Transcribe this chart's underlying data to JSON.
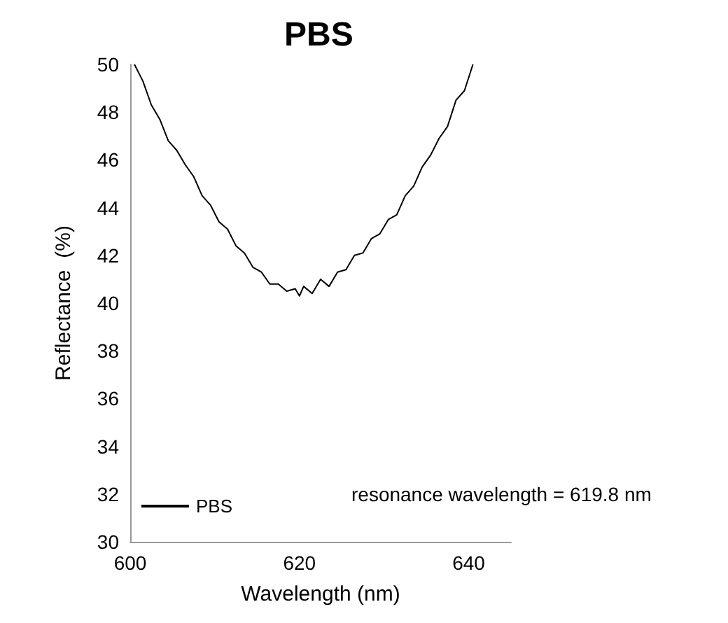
{
  "chart_data": {
    "type": "line",
    "title": "PBS",
    "xlabel": "Wavelength (nm)",
    "ylabel": "Reflectance  (%)",
    "annotations": [
      "resonance wavelength = 619.8 nm"
    ],
    "x": [
      600.5,
      601.5,
      602.5,
      603.5,
      604.5,
      605.5,
      606.5,
      607.5,
      608.5,
      609.5,
      610.5,
      611.5,
      612.5,
      613.5,
      614.5,
      615.5,
      616.5,
      617.5,
      618.5,
      619.5,
      620,
      620.5,
      621.5,
      622.5,
      623.5,
      624.5,
      625.5,
      626.5,
      627.5,
      628.5,
      629.5,
      630.5,
      631.5,
      632.5,
      633.5,
      634.5,
      635.5,
      636.5,
      637.5,
      638.5,
      639.5,
      640.5
    ],
    "series": [
      {
        "name": "PBS",
        "color": "#000000",
        "values": [
          50,
          49.3,
          48.3,
          47.7,
          46.8,
          46.4,
          45.8,
          45.3,
          44.5,
          44.1,
          43.4,
          43.1,
          42.4,
          42.1,
          41.5,
          41.3,
          40.8,
          40.8,
          40.5,
          40.6,
          40.3,
          40.7,
          40.4,
          41.0,
          40.7,
          41.3,
          41.4,
          42.0,
          42.1,
          42.7,
          42.9,
          43.5,
          43.7,
          44.5,
          44.9,
          45.7,
          46.2,
          46.9,
          47.4,
          48.5,
          48.9,
          50
        ]
      }
    ],
    "xlim": [
      600,
      645
    ],
    "xticks": [
      600,
      620,
      640
    ],
    "ylim": [
      30,
      50
    ],
    "yticks": [
      30,
      32,
      34,
      36,
      38,
      40,
      42,
      44,
      46,
      48,
      50
    ],
    "grid": false,
    "legend": "bottom left",
    "marker": "none",
    "line_style": "solid"
  }
}
